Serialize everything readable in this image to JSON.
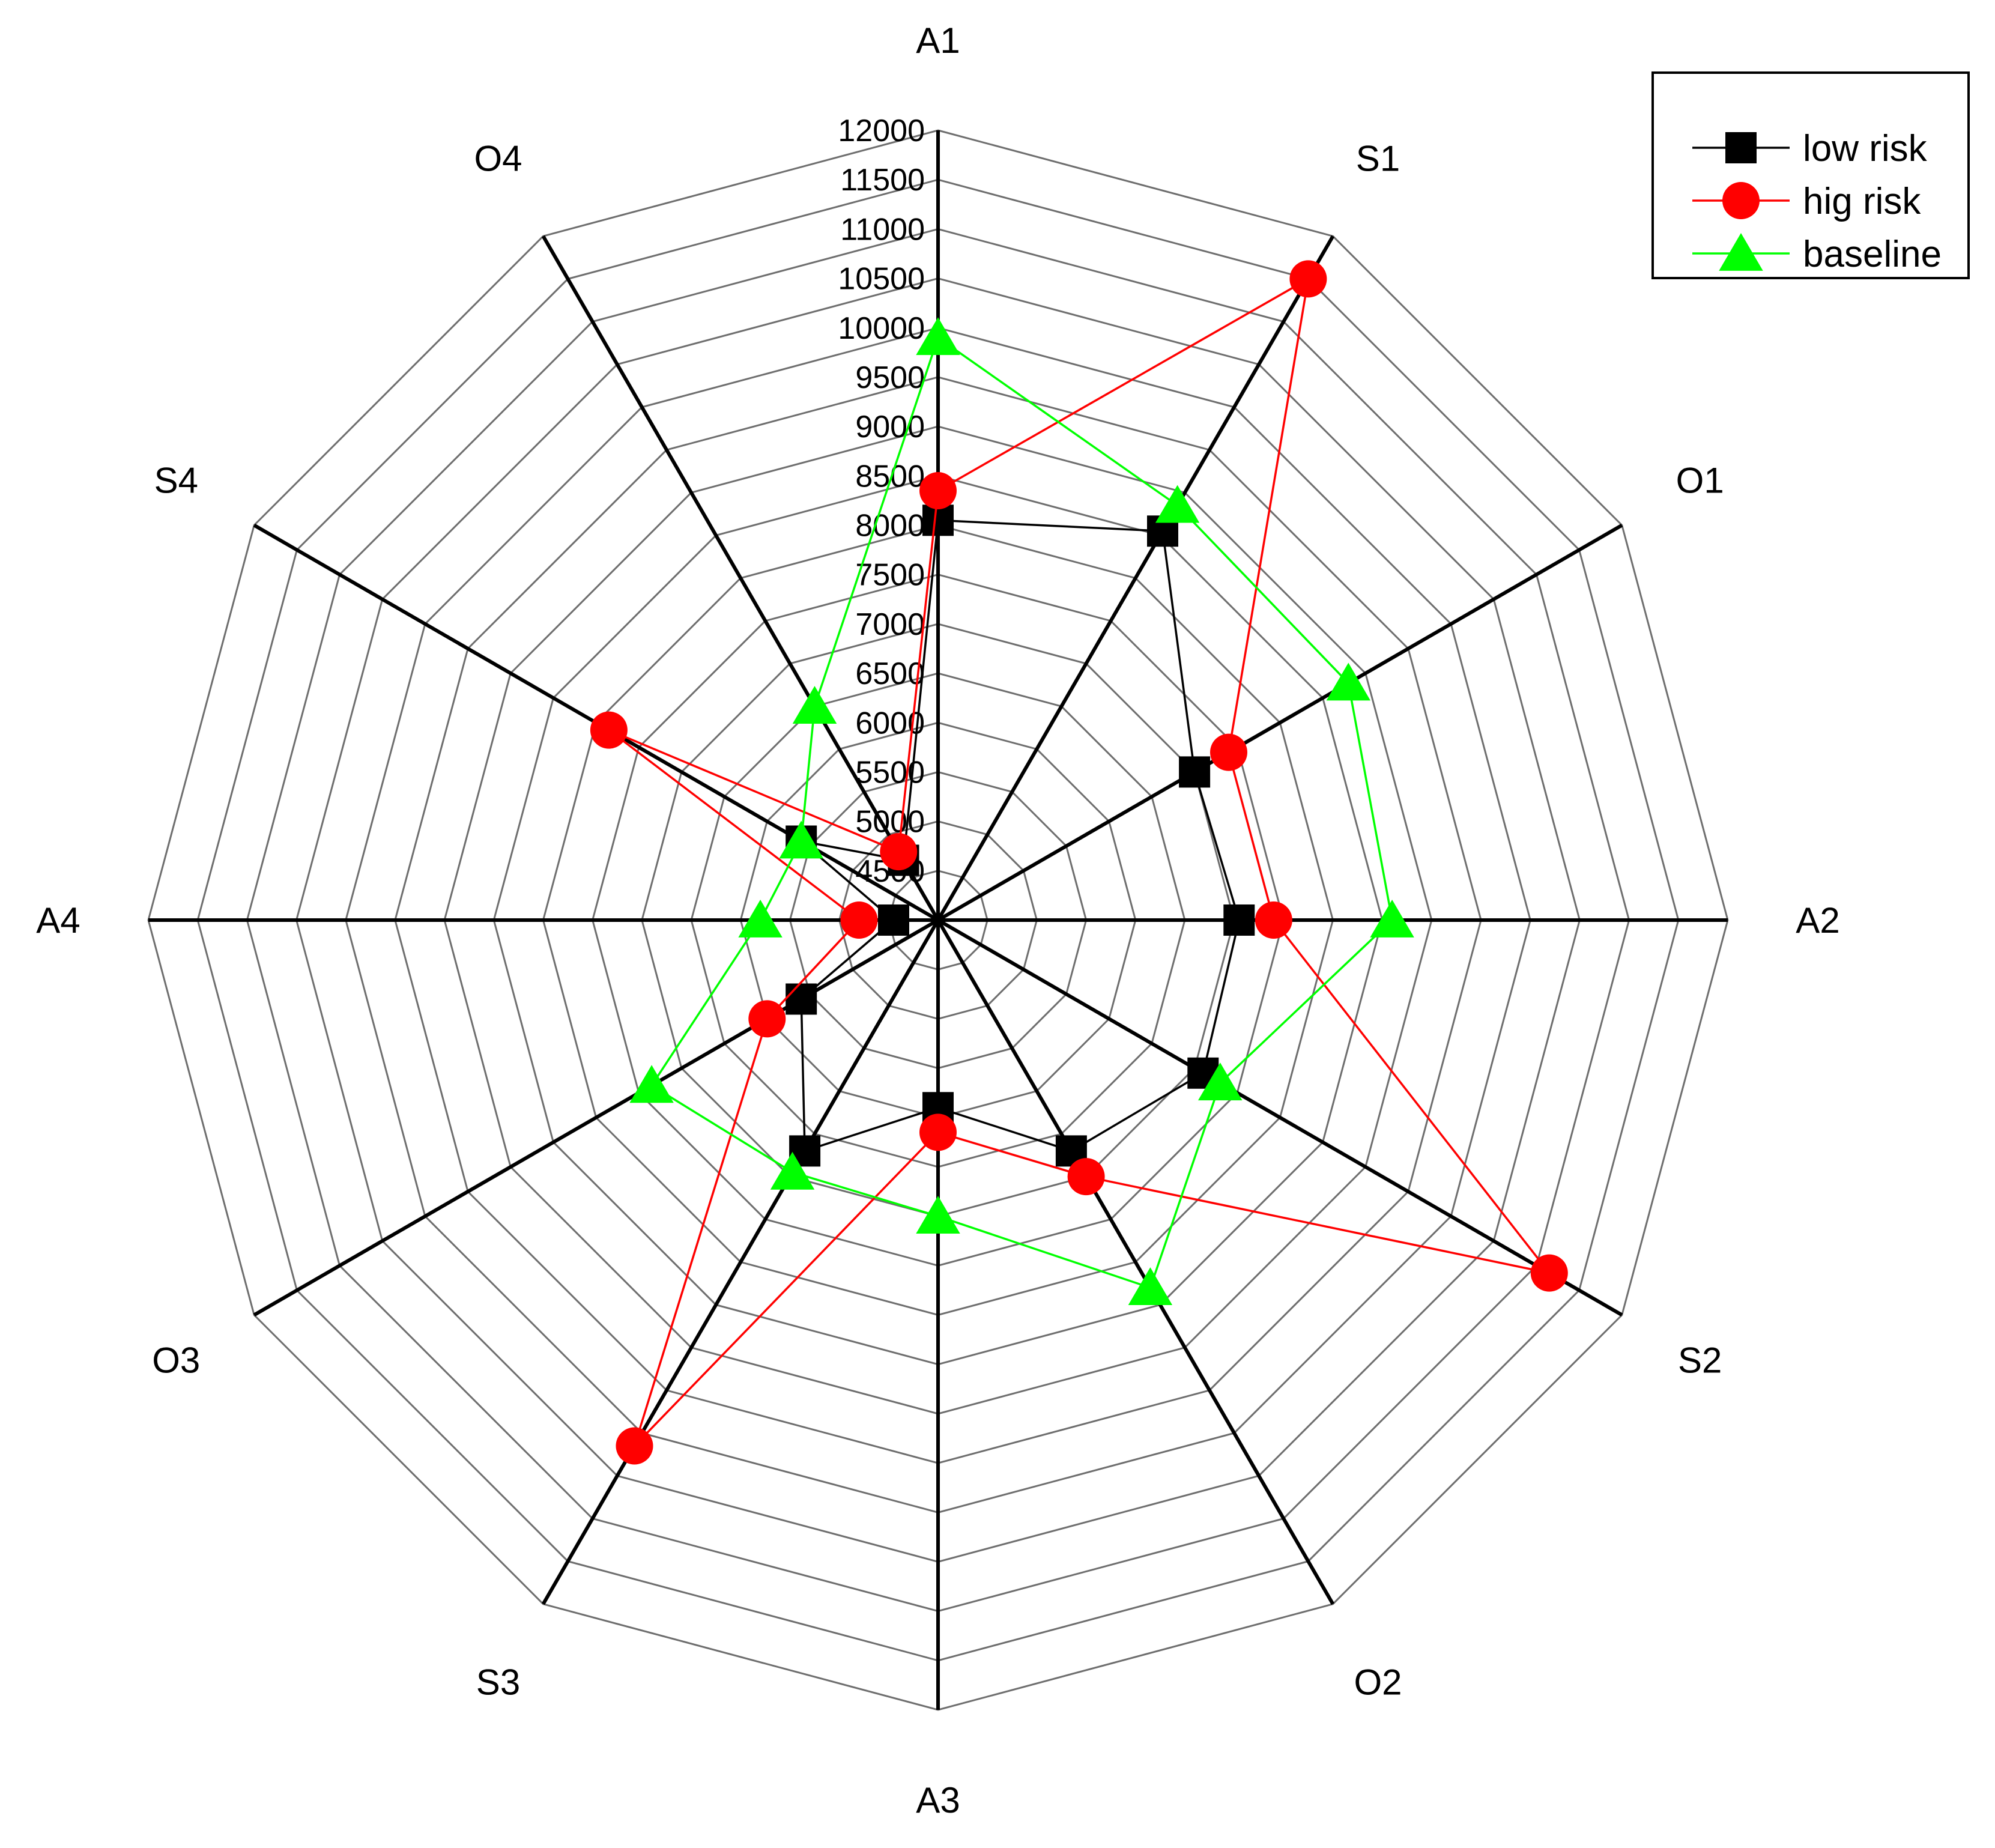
{
  "chart_data": {
    "type": "radar",
    "title": "",
    "axes": [
      "A1",
      "S1",
      "O1",
      "A2",
      "S2",
      "O2",
      "A3",
      "S3",
      "O3",
      "A4",
      "S4",
      "O4"
    ],
    "r_range": [
      4000,
      12000
    ],
    "ticks": [
      4500,
      5000,
      5500,
      6000,
      6500,
      7000,
      7500,
      8000,
      8500,
      9000,
      9500,
      10000,
      10500,
      11000,
      11500,
      12000
    ],
    "tick_labels": [
      "4500",
      "5000",
      "5500",
      "6000",
      "6500",
      "7000",
      "7500",
      "8000",
      "8500",
      "9000",
      "9500",
      "10000",
      "10500",
      "11000",
      "11500",
      "12000"
    ],
    "grid": true,
    "legend_position": "top-right",
    "series": [
      {
        "name": "low risk",
        "color": "#000000",
        "marker": "square",
        "values": [
          8050,
          8550,
          7000,
          7050,
          7100,
          6700,
          5900,
          6700,
          5600,
          4450,
          5600,
          4700
        ]
      },
      {
        "name": "hig risk",
        "color": "#ff0000",
        "marker": "circle",
        "values": [
          8350,
          11500,
          7400,
          7400,
          11150,
          7000,
          6150,
          10150,
          6000,
          4800,
          7850,
          4800
        ]
      },
      {
        "name": "baseline",
        "color": "#00ff00",
        "marker": "triangle",
        "values": [
          9900,
          8850,
          8800,
          8600,
          7300,
          8300,
          7000,
          6950,
          7350,
          5800,
          5600,
          6500
        ]
      }
    ]
  }
}
